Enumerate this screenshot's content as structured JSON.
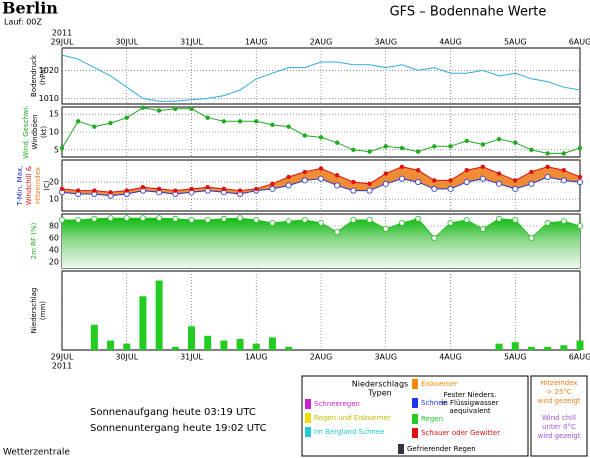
{
  "header": {
    "station": "Berlin",
    "run": "Lauf: 00Z",
    "title": "GFS – Bodennahe Werte"
  },
  "time_axis": {
    "year": "2011",
    "xlim": [
      0,
      192
    ],
    "xticks": [
      {
        "value": 0,
        "label": "29JUL"
      },
      {
        "value": 24,
        "label": "30JUL"
      },
      {
        "value": 48,
        "label": "31JUL"
      },
      {
        "value": 72,
        "label": "1AUG"
      },
      {
        "value": 96,
        "label": "2AUG"
      },
      {
        "value": 120,
        "label": "3AUG"
      },
      {
        "value": 144,
        "label": "4AUG"
      },
      {
        "value": 168,
        "label": "5AUG"
      },
      {
        "value": 192,
        "label": "6AUG"
      }
    ]
  },
  "chart_data": [
    {
      "type": "line",
      "ylabel": "Bodendruck",
      "unit": "(hPa)",
      "ylim": [
        1008,
        1028
      ],
      "yticks": [
        1010,
        1020
      ],
      "grid": true,
      "x": [
        0,
        6,
        12,
        18,
        24,
        30,
        36,
        42,
        48,
        54,
        60,
        66,
        72,
        78,
        84,
        90,
        96,
        102,
        108,
        114,
        120,
        126,
        132,
        138,
        144,
        150,
        156,
        162,
        168,
        174,
        180,
        186,
        192
      ],
      "series": [
        {
          "color": "#33aadd",
          "marker": "none",
          "values": [
            1025.5,
            1024,
            1021,
            1018,
            1014,
            1010,
            1009,
            1009,
            1009.5,
            1010,
            1011,
            1013,
            1017,
            1019,
            1021,
            1021,
            1023,
            1023,
            1022,
            1022,
            1021,
            1022,
            1020,
            1021,
            1019,
            1019,
            1020,
            1018,
            1019,
            1017,
            1016,
            1014,
            1013
          ]
        }
      ]
    },
    {
      "type": "line",
      "ylabel": "Wind, Geschwi.",
      "ylabel2": "Windböen",
      "unit": "(kt)",
      "ylim": [
        3,
        17
      ],
      "yticks": [
        5,
        10,
        15
      ],
      "grid": true,
      "x": [
        0,
        6,
        12,
        18,
        24,
        30,
        36,
        42,
        48,
        54,
        60,
        66,
        72,
        78,
        84,
        90,
        96,
        102,
        108,
        114,
        120,
        126,
        132,
        138,
        144,
        150,
        156,
        162,
        168,
        174,
        180,
        186,
        192
      ],
      "series": [
        {
          "color": "#22aa22",
          "marker": "dot",
          "values": [
            5.5,
            13,
            11.5,
            12.5,
            14,
            16.8,
            16,
            16.5,
            16.5,
            14,
            13,
            13,
            13,
            12,
            11.5,
            9,
            8.5,
            7,
            5,
            4.5,
            6,
            5.5,
            4.5,
            6,
            6,
            7.5,
            6.5,
            8,
            7,
            5,
            4,
            4,
            5.5
          ]
        }
      ]
    },
    {
      "type": "line",
      "ylabel": "T-Min, Max,",
      "ylabel2": "Windchill &",
      "ylabel3": "Hitzeindex",
      "unit": "(C)",
      "ylim": [
        3,
        33
      ],
      "yticks": [
        10,
        20
      ],
      "grid": true,
      "fill_between": "#f08020",
      "x": [
        0,
        6,
        12,
        18,
        24,
        30,
        36,
        42,
        48,
        54,
        60,
        66,
        72,
        78,
        84,
        90,
        96,
        102,
        108,
        114,
        120,
        126,
        132,
        138,
        144,
        150,
        156,
        162,
        168,
        174,
        180,
        186,
        192
      ],
      "series": [
        {
          "color": "#2233cc",
          "marker": "open",
          "values": [
            14,
            13,
            13,
            12,
            13,
            15,
            14,
            13,
            14,
            15,
            14,
            13,
            15,
            16,
            18,
            21,
            22,
            18,
            15,
            15,
            19,
            22,
            20,
            16,
            16,
            20,
            22,
            19,
            16,
            19,
            23,
            21,
            20
          ]
        },
        {
          "color": "#dd1111",
          "marker": "dot",
          "values": [
            16,
            15,
            15,
            14,
            15,
            17,
            16,
            15,
            16,
            17,
            16,
            15,
            16,
            19,
            23,
            26,
            28,
            24,
            20,
            19,
            25,
            29,
            27,
            21,
            21,
            27,
            29,
            25,
            21,
            26,
            29,
            27,
            23
          ]
        }
      ]
    },
    {
      "type": "area",
      "ylabel": "2m RF (%)",
      "ylim": [
        10,
        100
      ],
      "yticks": [
        20,
        40,
        60,
        80
      ],
      "grid": true,
      "x": [
        0,
        6,
        12,
        18,
        24,
        30,
        36,
        42,
        48,
        54,
        60,
        66,
        72,
        78,
        84,
        90,
        96,
        102,
        108,
        114,
        120,
        126,
        132,
        138,
        144,
        150,
        156,
        162,
        168,
        174,
        180,
        186,
        192
      ],
      "series": [
        {
          "color": "#1fbf1f",
          "marker": "open",
          "values": [
            90,
            90,
            92,
            93,
            93,
            93,
            93,
            92,
            90,
            90,
            92,
            93,
            90,
            85,
            88,
            90,
            85,
            70,
            90,
            90,
            75,
            85,
            92,
            60,
            85,
            90,
            75,
            92,
            90,
            60,
            85,
            88,
            80
          ]
        }
      ]
    },
    {
      "type": "bar",
      "ylabel": "Niederschlag",
      "unit": "(mm)",
      "ylim": [
        0,
        25
      ],
      "yticks": [],
      "grid": false,
      "x": [
        0,
        6,
        12,
        18,
        24,
        30,
        36,
        42,
        48,
        54,
        60,
        66,
        72,
        78,
        84,
        90,
        96,
        102,
        108,
        114,
        120,
        126,
        132,
        138,
        144,
        150,
        156,
        162,
        168,
        174,
        180,
        186,
        192
      ],
      "series": [
        {
          "color": "#22cc22",
          "values": [
            0,
            0,
            8,
            3,
            2,
            17,
            22,
            1,
            7.5,
            4.5,
            3,
            3.5,
            2,
            4,
            1,
            0,
            0,
            0,
            0,
            0,
            0,
            0,
            0,
            0,
            0,
            0,
            0,
            2,
            2.5,
            1,
            1,
            1.5,
            3
          ]
        }
      ]
    }
  ],
  "precip_legend": {
    "title": "Niederschlags",
    "title2": "Typen",
    "items": [
      {
        "label": "Schneeregen",
        "color": "#cc22cc"
      },
      {
        "label": "Regen und Eiskoerner",
        "color": "#eedd00"
      },
      {
        "label": "Im Bergland Schnee",
        "color": "#22cccc"
      },
      {
        "label": "Eiskoerner",
        "color": "#ff8800"
      },
      {
        "label": "Schnee",
        "color": "#2233ee"
      },
      {
        "label": "Regen",
        "color": "#22cc22"
      },
      {
        "label": "Schauer oder Gewitter",
        "color": "#dd1111"
      },
      {
        "label": "Gefrierender Regen",
        "color": "#333344"
      }
    ],
    "note": [
      "Fester Nieders.",
      "in Flüssigwasser",
      "aequivalent"
    ]
  },
  "index_legend": {
    "heat": [
      "Hitzeindex",
      "> 25°C",
      "wird gezeigt"
    ],
    "chill": [
      "Wind chill",
      "unter 0°C",
      "wird gezeigt"
    ]
  },
  "footer": {
    "sunrise": "Sonnenaufgang heute 03:19 UTC",
    "sunset": "Sonnenuntergang heute 19:02 UTC",
    "source": "Wetterzentrale"
  }
}
